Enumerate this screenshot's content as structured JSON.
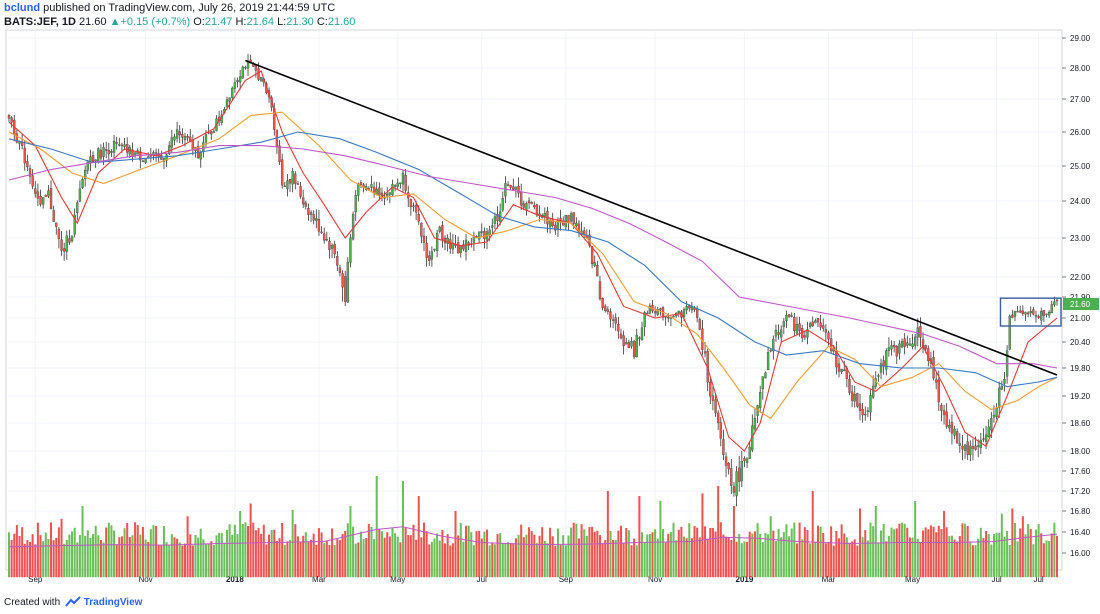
{
  "header": {
    "author": "bclund",
    "published_text": "published on TradingView.com, July 26, 2019 21:44:59 UTC",
    "symbol": "BATS:JEF, 1D",
    "last": "21.60",
    "change_arrow": "▲",
    "change": "+0.15 (+0.7%)",
    "open_label": "O:",
    "open": "21.47",
    "high_label": "H:",
    "high": "21.64",
    "low_label": "L:",
    "low": "21.30",
    "close_label": "C:",
    "close": "21.60"
  },
  "footer": {
    "created_with": "Created with",
    "brand": "TradingView"
  },
  "colors": {
    "up": "#4caf50",
    "down": "#ef5350",
    "vol_up": "#6bbf59",
    "vol_down": "#ef5350",
    "trendline": "#000000",
    "ma_red": "#e53935",
    "ma_orange": "#f39c34",
    "ma_blue": "#3a78c2",
    "ma_purple": "#c055c8",
    "box": "#3a5fa0",
    "price_tag": "#4caf50"
  },
  "chart_data": {
    "type": "candlestick",
    "symbol": "BATS:JEF",
    "interval": "1D",
    "ylim": [
      15.6,
      29.1
    ],
    "y_ticks": [
      "29.00",
      "28.00",
      "27.00",
      "26.00",
      "25.00",
      "24.00",
      "23.00",
      "22.00",
      "21.90",
      "21.00",
      "20.40",
      "19.80",
      "19.20",
      "18.60",
      "18.00",
      "17.60",
      "17.20",
      "16.80",
      "16.40",
      "16.00"
    ],
    "last_price_label": "21.60",
    "x_ticks": [
      "Sep",
      "Nov",
      "2018",
      "Mar",
      "May",
      "Jul",
      "Sep",
      "Nov",
      "2019",
      "Mar",
      "May",
      "Jul",
      "Jul"
    ],
    "x_tick_index": [
      10,
      52,
      86,
      118,
      148,
      180,
      212,
      246,
      280,
      312,
      344,
      376,
      392
    ],
    "bars": 400,
    "price_path": [
      [
        0,
        26.5
      ],
      [
        8,
        24.8
      ],
      [
        12,
        23.8
      ],
      [
        15,
        24.2
      ],
      [
        20,
        22.6
      ],
      [
        24,
        23.2
      ],
      [
        30,
        25.2
      ],
      [
        40,
        25.6
      ],
      [
        50,
        25.3
      ],
      [
        58,
        25.2
      ],
      [
        64,
        26.0
      ],
      [
        72,
        25.4
      ],
      [
        80,
        26.4
      ],
      [
        86,
        27.6
      ],
      [
        90,
        28.15
      ],
      [
        95,
        27.8
      ],
      [
        100,
        26.8
      ],
      [
        104,
        24.5
      ],
      [
        108,
        24.7
      ],
      [
        112,
        24.0
      ],
      [
        118,
        23.3
      ],
      [
        124,
        22.6
      ],
      [
        128,
        21.7
      ],
      [
        132,
        24.3
      ],
      [
        138,
        24.4
      ],
      [
        144,
        24.2
      ],
      [
        150,
        24.7
      ],
      [
        156,
        23.3
      ],
      [
        160,
        22.4
      ],
      [
        164,
        23.2
      ],
      [
        170,
        22.7
      ],
      [
        176,
        22.9
      ],
      [
        182,
        23.2
      ],
      [
        186,
        23.6
      ],
      [
        190,
        24.6
      ],
      [
        196,
        23.9
      ],
      [
        202,
        23.7
      ],
      [
        208,
        23.3
      ],
      [
        214,
        23.6
      ],
      [
        220,
        22.9
      ],
      [
        226,
        21.6
      ],
      [
        232,
        20.6
      ],
      [
        238,
        20.2
      ],
      [
        244,
        21.5
      ],
      [
        250,
        21.1
      ],
      [
        256,
        21.2
      ],
      [
        260,
        21.6
      ],
      [
        264,
        20.3
      ],
      [
        268,
        19.0
      ],
      [
        272,
        17.9
      ],
      [
        276,
        17.3
      ],
      [
        280,
        17.8
      ],
      [
        284,
        18.6
      ],
      [
        290,
        20.3
      ],
      [
        296,
        21.1
      ],
      [
        302,
        20.6
      ],
      [
        308,
        20.9
      ],
      [
        314,
        20.1
      ],
      [
        318,
        19.6
      ],
      [
        322,
        19.1
      ],
      [
        326,
        18.8
      ],
      [
        330,
        19.7
      ],
      [
        336,
        20.2
      ],
      [
        342,
        20.3
      ],
      [
        346,
        20.7
      ],
      [
        350,
        20.1
      ],
      [
        354,
        19.1
      ],
      [
        358,
        18.5
      ],
      [
        362,
        18.2
      ],
      [
        366,
        18.0
      ],
      [
        372,
        18.3
      ],
      [
        376,
        19.1
      ],
      [
        379,
        19.5
      ],
      [
        381,
        21.0
      ],
      [
        384,
        21.4
      ],
      [
        388,
        21.2
      ],
      [
        392,
        21.1
      ],
      [
        396,
        21.4
      ],
      [
        399,
        21.6
      ]
    ],
    "trendline": [
      [
        90,
        28.25
      ],
      [
        399,
        19.65
      ]
    ],
    "breakout_box": {
      "x": [
        379,
        399
      ],
      "y": [
        20.8,
        21.85
      ]
    },
    "moving_averages": [
      {
        "color": "red",
        "path": [
          [
            0,
            26.3
          ],
          [
            10,
            25.6
          ],
          [
            20,
            24.1
          ],
          [
            26,
            23.4
          ],
          [
            34,
            24.8
          ],
          [
            44,
            25.5
          ],
          [
            56,
            25.3
          ],
          [
            66,
            25.6
          ],
          [
            78,
            26.1
          ],
          [
            90,
            27.6
          ],
          [
            96,
            27.9
          ],
          [
            104,
            26.0
          ],
          [
            112,
            24.8
          ],
          [
            120,
            23.9
          ],
          [
            128,
            23.0
          ],
          [
            136,
            23.7
          ],
          [
            146,
            24.4
          ],
          [
            154,
            24.1
          ],
          [
            162,
            23.0
          ],
          [
            172,
            22.8
          ],
          [
            182,
            22.9
          ],
          [
            192,
            23.9
          ],
          [
            202,
            23.6
          ],
          [
            214,
            23.4
          ],
          [
            224,
            22.6
          ],
          [
            234,
            21.5
          ],
          [
            246,
            21.0
          ],
          [
            256,
            21.2
          ],
          [
            266,
            19.8
          ],
          [
            274,
            18.3
          ],
          [
            280,
            18.0
          ],
          [
            286,
            18.6
          ],
          [
            294,
            20.4
          ],
          [
            304,
            20.7
          ],
          [
            314,
            20.3
          ],
          [
            322,
            19.5
          ],
          [
            330,
            19.3
          ],
          [
            340,
            19.8
          ],
          [
            348,
            20.3
          ],
          [
            356,
            19.4
          ],
          [
            364,
            18.4
          ],
          [
            372,
            18.1
          ],
          [
            380,
            19.2
          ],
          [
            388,
            20.4
          ],
          [
            399,
            21.0
          ]
        ]
      },
      {
        "color": "orange",
        "path": [
          [
            0,
            26.0
          ],
          [
            12,
            25.5
          ],
          [
            24,
            24.8
          ],
          [
            36,
            24.5
          ],
          [
            50,
            24.9
          ],
          [
            64,
            25.3
          ],
          [
            80,
            25.8
          ],
          [
            92,
            26.5
          ],
          [
            104,
            26.6
          ],
          [
            118,
            25.6
          ],
          [
            130,
            24.6
          ],
          [
            142,
            24.1
          ],
          [
            154,
            24.2
          ],
          [
            166,
            23.5
          ],
          [
            178,
            23.0
          ],
          [
            190,
            23.2
          ],
          [
            202,
            23.5
          ],
          [
            214,
            23.4
          ],
          [
            226,
            22.6
          ],
          [
            238,
            21.7
          ],
          [
            250,
            21.2
          ],
          [
            262,
            20.6
          ],
          [
            272,
            19.8
          ],
          [
            282,
            19.0
          ],
          [
            290,
            18.7
          ],
          [
            300,
            19.5
          ],
          [
            312,
            20.3
          ],
          [
            322,
            20.0
          ],
          [
            332,
            19.4
          ],
          [
            344,
            19.6
          ],
          [
            354,
            19.9
          ],
          [
            364,
            19.3
          ],
          [
            374,
            18.9
          ],
          [
            384,
            19.1
          ],
          [
            392,
            19.4
          ],
          [
            399,
            19.6
          ]
        ]
      },
      {
        "color": "blue",
        "path": [
          [
            0,
            25.8
          ],
          [
            16,
            25.5
          ],
          [
            32,
            25.1
          ],
          [
            48,
            25.2
          ],
          [
            64,
            25.3
          ],
          [
            80,
            25.5
          ],
          [
            96,
            25.7
          ],
          [
            110,
            26.0
          ],
          [
            126,
            25.8
          ],
          [
            140,
            25.4
          ],
          [
            156,
            24.9
          ],
          [
            172,
            24.2
          ],
          [
            186,
            23.6
          ],
          [
            200,
            23.3
          ],
          [
            214,
            23.2
          ],
          [
            228,
            22.9
          ],
          [
            242,
            22.3
          ],
          [
            256,
            21.7
          ],
          [
            270,
            21.0
          ],
          [
            284,
            20.4
          ],
          [
            296,
            20.1
          ],
          [
            310,
            20.2
          ],
          [
            324,
            19.9
          ],
          [
            340,
            19.8
          ],
          [
            354,
            19.8
          ],
          [
            368,
            19.7
          ],
          [
            380,
            19.4
          ],
          [
            392,
            19.5
          ],
          [
            399,
            19.6
          ]
        ]
      },
      {
        "color": "purple",
        "path": [
          [
            0,
            24.6
          ],
          [
            16,
            24.9
          ],
          [
            32,
            25.1
          ],
          [
            48,
            25.3
          ],
          [
            64,
            25.4
          ],
          [
            80,
            25.6
          ],
          [
            96,
            25.6
          ],
          [
            112,
            25.5
          ],
          [
            128,
            25.3
          ],
          [
            144,
            25.0
          ],
          [
            160,
            24.7
          ],
          [
            176,
            24.5
          ],
          [
            192,
            24.3
          ],
          [
            208,
            24.1
          ],
          [
            222,
            23.8
          ],
          [
            236,
            23.4
          ],
          [
            250,
            22.9
          ],
          [
            264,
            22.4
          ],
          [
            278,
            21.9
          ],
          [
            292,
            21.6
          ],
          [
            306,
            21.3
          ],
          [
            320,
            21.0
          ],
          [
            334,
            20.8
          ],
          [
            348,
            20.6
          ],
          [
            362,
            20.3
          ],
          [
            376,
            19.9
          ],
          [
            390,
            19.9
          ],
          [
            399,
            19.8
          ]
        ]
      }
    ],
    "volume_ma": [
      [
        0,
        16.12
      ],
      [
        20,
        16.14
      ],
      [
        40,
        16.16
      ],
      [
        60,
        16.15
      ],
      [
        80,
        16.18
      ],
      [
        100,
        16.2
      ],
      [
        120,
        16.22
      ],
      [
        140,
        16.45
      ],
      [
        150,
        16.5
      ],
      [
        165,
        16.32
      ],
      [
        180,
        16.2
      ],
      [
        200,
        16.16
      ],
      [
        220,
        16.17
      ],
      [
        240,
        16.2
      ],
      [
        260,
        16.22
      ],
      [
        272,
        16.3
      ],
      [
        285,
        16.28
      ],
      [
        300,
        16.22
      ],
      [
        320,
        16.18
      ],
      [
        340,
        16.2
      ],
      [
        360,
        16.2
      ],
      [
        375,
        16.22
      ],
      [
        388,
        16.3
      ],
      [
        399,
        16.36
      ]
    ],
    "volume_spikes": [
      [
        20,
        16.65
      ],
      [
        28,
        16.9
      ],
      [
        68,
        16.7
      ],
      [
        88,
        16.8
      ],
      [
        92,
        16.95
      ],
      [
        108,
        16.82
      ],
      [
        130,
        16.9
      ],
      [
        140,
        17.5
      ],
      [
        150,
        17.4
      ],
      [
        156,
        17.1
      ],
      [
        170,
        16.8
      ],
      [
        218,
        16.55
      ],
      [
        228,
        17.2
      ],
      [
        240,
        17.1
      ],
      [
        248,
        17.0
      ],
      [
        264,
        17.15
      ],
      [
        270,
        17.3
      ],
      [
        276,
        16.9
      ],
      [
        290,
        16.7
      ],
      [
        306,
        17.2
      ],
      [
        324,
        16.85
      ],
      [
        330,
        16.9
      ],
      [
        345,
        17.0
      ],
      [
        356,
        16.8
      ],
      [
        378,
        16.75
      ],
      [
        382,
        16.85
      ],
      [
        386,
        16.7
      ]
    ]
  }
}
